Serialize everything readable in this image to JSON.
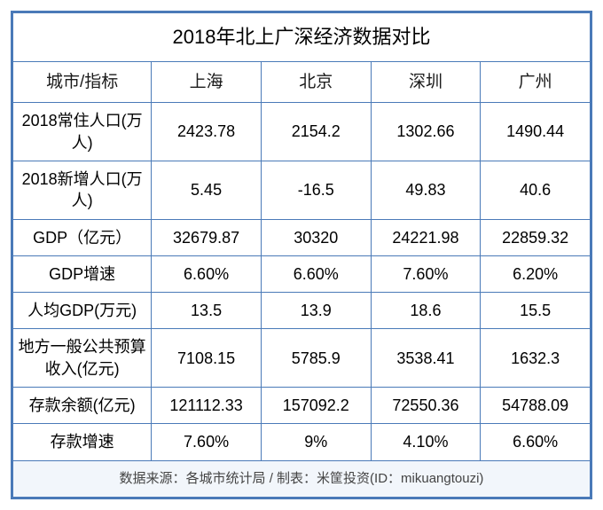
{
  "table": {
    "type": "table",
    "title": "2018年北上广深经济数据对比",
    "header_label": "城市/指标",
    "columns": [
      "上海",
      "北京",
      "深圳",
      "广州"
    ],
    "rows": [
      {
        "label": "2018常住人口(万人)",
        "values": [
          "2423.78",
          "2154.2",
          "1302.66",
          "1490.44"
        ]
      },
      {
        "label": "2018新增人口(万人)",
        "values": [
          "5.45",
          "-16.5",
          "49.83",
          "40.6"
        ]
      },
      {
        "label": "GDP（亿元）",
        "values": [
          "32679.87",
          "30320",
          "24221.98",
          "22859.32"
        ]
      },
      {
        "label": "GDP增速",
        "values": [
          "6.60%",
          "6.60%",
          "7.60%",
          "6.20%"
        ]
      },
      {
        "label": "人均GDP(万元)",
        "values": [
          "13.5",
          "13.9",
          "18.6",
          "15.5"
        ]
      },
      {
        "label": "地方一般公共预算收入(亿元)",
        "values": [
          "7108.15",
          "5785.9",
          "3538.41",
          "1632.3"
        ]
      },
      {
        "label": "存款余额(亿元)",
        "values": [
          "121112.33",
          "157092.2",
          "72550.36",
          "54788.09"
        ]
      },
      {
        "label": "存款增速",
        "values": [
          "7.60%",
          "9%",
          "4.10%",
          "6.60%"
        ]
      }
    ],
    "footer": "数据来源：各城市统计局 / 制表：米筐投资(ID：mikuangtouzi)",
    "styling": {
      "border_color": "#4a7ab8",
      "background_color": "#ffffff",
      "footer_background": "#f2f6fb",
      "text_color": "#000000",
      "footer_text_color": "#444444",
      "title_fontsize": 22,
      "header_fontsize": 19,
      "cell_fontsize": 18,
      "footer_fontsize": 15,
      "column_widths_pct": [
        24,
        19,
        19,
        19,
        19
      ]
    }
  }
}
